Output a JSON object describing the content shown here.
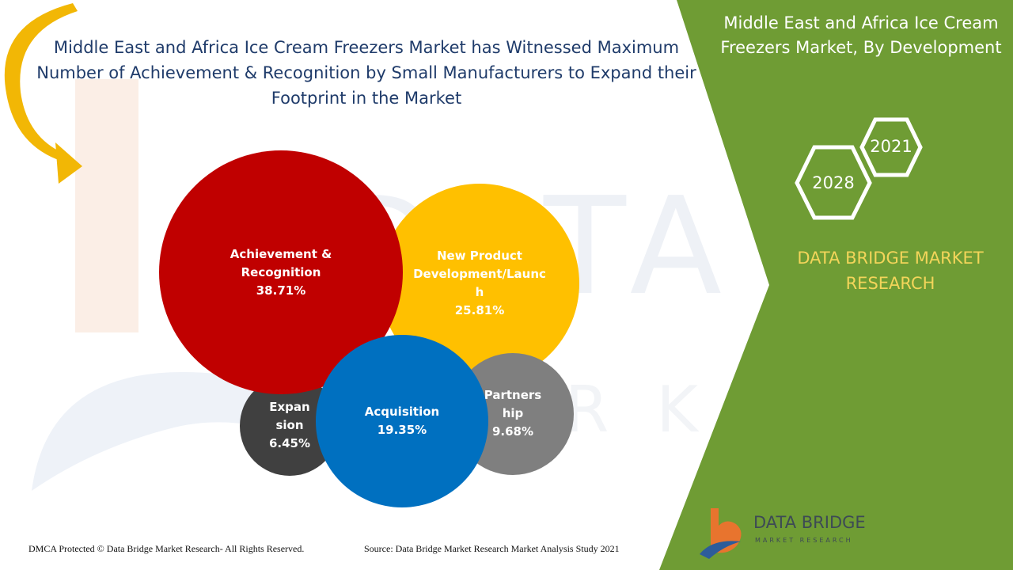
{
  "header": {
    "title": "Middle East and Africa Ice Cream Freezers Market has Witnessed Maximum Number of Achievement & Recognition by Small Manufacturers to Expand their Footprint in the Market"
  },
  "side_panel": {
    "title": "Middle East and Africa Ice Cream Freezers Market, By Development",
    "year_front": "2028",
    "year_back": "2021",
    "brand": "DATA BRIDGE MARKET RESEARCH",
    "panel_color": "#6f9c34",
    "brand_color": "#f3d55a"
  },
  "chart_data": {
    "type": "bubble",
    "title": "Middle East and Africa Ice Cream Freezers Market has Witnessed Maximum Number of Achievement & Recognition by Small Manufacturers to Expand their Footprint in the Market",
    "series": [
      {
        "name": "Achievement & Recognition",
        "label_lines": [
          "Achievement &",
          "Recognition"
        ],
        "value": 38.71,
        "display": "38.71%",
        "color": "#c00000"
      },
      {
        "name": "New Product Development/Launch",
        "label_lines": [
          "New Product",
          "Development/Launc",
          "h"
        ],
        "value": 25.81,
        "display": "25.81%",
        "color": "#ffc000"
      },
      {
        "name": "Acquisition",
        "label_lines": [
          "Acquisition"
        ],
        "value": 19.35,
        "display": "19.35%",
        "color": "#0070c0"
      },
      {
        "name": "Partnership",
        "label_lines": [
          "Partners",
          "hip"
        ],
        "value": 9.68,
        "display": "9.68%",
        "color": "#7f7f7f"
      },
      {
        "name": "Expansion",
        "label_lines": [
          "Expan",
          "sion"
        ],
        "value": 6.45,
        "display": "6.45%",
        "color": "#404040"
      }
    ]
  },
  "footer": {
    "copyright": "DMCA Protected © Data Bridge Market Research- All Rights Reserved.",
    "source": "Source: Data Bridge Market Research Market Analysis Study 2021"
  },
  "logo": {
    "name": "DATA BRIDGE",
    "tagline": "MARKET RESEARCH"
  }
}
